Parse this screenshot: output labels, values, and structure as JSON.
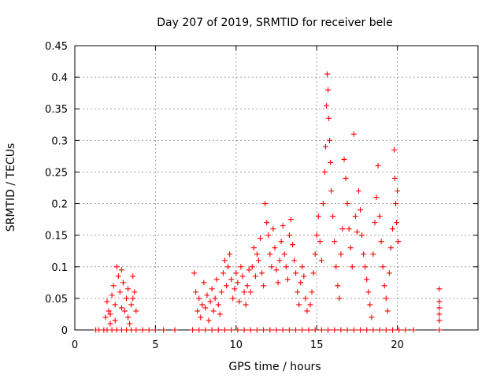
{
  "chart_data": {
    "type": "scatter",
    "title": "Day 207 of 2019, SRMTID for receiver bele",
    "xlabel": "GPS time / hours",
    "ylabel": "SRMTID / TECUs",
    "xlim": [
      0,
      25
    ],
    "ylim": [
      0,
      0.45
    ],
    "xticks": [
      0,
      5,
      10,
      15,
      20
    ],
    "xtick_labels": [
      "0",
      "5",
      "10",
      "15",
      "20"
    ],
    "yticks": [
      0,
      0.05,
      0.1,
      0.15,
      0.2,
      0.25,
      0.3,
      0.35,
      0.4,
      0.45
    ],
    "ytick_labels": [
      "0",
      "0.05",
      "0.1",
      "0.15",
      "0.2",
      "0.25",
      "0.3",
      "0.35",
      "0.4",
      "0.45"
    ],
    "grid": true,
    "marker": "+",
    "color": "#ff0000",
    "series": [
      {
        "name": "SRMTID",
        "points": [
          [
            1.3,
            0
          ],
          [
            1.5,
            0
          ],
          [
            1.8,
            0
          ],
          [
            2.0,
            0
          ],
          [
            2.3,
            0
          ],
          [
            2.6,
            0
          ],
          [
            2.9,
            0
          ],
          [
            3.2,
            0
          ],
          [
            3.5,
            0
          ],
          [
            3.8,
            0
          ],
          [
            4.2,
            0
          ],
          [
            4.6,
            0
          ],
          [
            5.0,
            0
          ],
          [
            5.5,
            0
          ],
          [
            6.2,
            0
          ],
          [
            1.9,
            0.02
          ],
          [
            2.0,
            0.045
          ],
          [
            2.1,
            0.03
          ],
          [
            2.2,
            0.01
          ],
          [
            2.3,
            0.055
          ],
          [
            2.4,
            0.07
          ],
          [
            2.5,
            0.04
          ],
          [
            2.6,
            0.1
          ],
          [
            2.7,
            0.085
          ],
          [
            2.8,
            0.06
          ],
          [
            2.9,
            0.095
          ],
          [
            3.0,
            0.075
          ],
          [
            3.1,
            0.03
          ],
          [
            3.2,
            0.05
          ],
          [
            3.3,
            0.02
          ],
          [
            3.4,
            0.01
          ],
          [
            3.5,
            0.04
          ],
          [
            3.6,
            0.085
          ],
          [
            3.7,
            0.06
          ],
          [
            3.8,
            0.03
          ],
          [
            2.2,
            0.025
          ],
          [
            2.5,
            0.015
          ],
          [
            2.9,
            0.035
          ],
          [
            3.3,
            0.065
          ],
          [
            3.6,
            0.05
          ],
          [
            7.3,
            0
          ],
          [
            7.7,
            0
          ],
          [
            8.1,
            0
          ],
          [
            8.5,
            0
          ],
          [
            8.9,
            0
          ],
          [
            9.3,
            0
          ],
          [
            9.7,
            0
          ],
          [
            10.1,
            0
          ],
          [
            10.5,
            0
          ],
          [
            10.9,
            0
          ],
          [
            11.3,
            0
          ],
          [
            11.7,
            0
          ],
          [
            12.1,
            0
          ],
          [
            12.5,
            0
          ],
          [
            12.9,
            0
          ],
          [
            13.3,
            0
          ],
          [
            13.7,
            0
          ],
          [
            14.1,
            0
          ],
          [
            14.5,
            0
          ],
          [
            14.9,
            0
          ],
          [
            15.3,
            0
          ],
          [
            15.7,
            0
          ],
          [
            16.1,
            0
          ],
          [
            16.5,
            0
          ],
          [
            16.9,
            0
          ],
          [
            17.3,
            0
          ],
          [
            17.7,
            0
          ],
          [
            18.1,
            0
          ],
          [
            18.5,
            0
          ],
          [
            18.9,
            0
          ],
          [
            19.3,
            0
          ],
          [
            19.7,
            0
          ],
          [
            20.1,
            0
          ],
          [
            20.5,
            0
          ],
          [
            21.0,
            0
          ],
          [
            7.4,
            0.09
          ],
          [
            7.5,
            0.06
          ],
          [
            7.6,
            0.03
          ],
          [
            7.7,
            0.05
          ],
          [
            7.8,
            0.02
          ],
          [
            7.9,
            0.04
          ],
          [
            8.0,
            0.075
          ],
          [
            8.1,
            0.035
          ],
          [
            8.2,
            0.055
          ],
          [
            8.3,
            0.015
          ],
          [
            8.4,
            0.045
          ],
          [
            8.5,
            0.065
          ],
          [
            8.6,
            0.03
          ],
          [
            8.7,
            0.05
          ],
          [
            8.8,
            0.08
          ],
          [
            8.9,
            0.04
          ],
          [
            9.0,
            0.025
          ],
          [
            9.1,
            0.06
          ],
          [
            9.2,
            0.09
          ],
          [
            9.3,
            0.11
          ],
          [
            9.4,
            0.07
          ],
          [
            9.5,
            0.1
          ],
          [
            9.6,
            0.12
          ],
          [
            9.7,
            0.08
          ],
          [
            9.8,
            0.05
          ],
          [
            9.9,
            0.065
          ],
          [
            10.0,
            0.09
          ],
          [
            10.1,
            0.075
          ],
          [
            10.2,
            0.045
          ],
          [
            10.3,
            0.1
          ],
          [
            10.4,
            0.085
          ],
          [
            10.5,
            0.06
          ],
          [
            10.6,
            0.04
          ],
          [
            10.7,
            0.07
          ],
          [
            10.8,
            0.095
          ],
          [
            10.9,
            0.06
          ],
          [
            11.0,
            0.1
          ],
          [
            11.1,
            0.13
          ],
          [
            11.2,
            0.085
          ],
          [
            11.3,
            0.12
          ],
          [
            11.4,
            0.11
          ],
          [
            11.5,
            0.145
          ],
          [
            11.6,
            0.09
          ],
          [
            11.7,
            0.07
          ],
          [
            11.8,
            0.2
          ],
          [
            11.9,
            0.17
          ],
          [
            12.0,
            0.15
          ],
          [
            12.1,
            0.12
          ],
          [
            12.2,
            0.1
          ],
          [
            12.3,
            0.16
          ],
          [
            12.4,
            0.13
          ],
          [
            12.5,
            0.095
          ],
          [
            12.6,
            0.075
          ],
          [
            12.7,
            0.11
          ],
          [
            12.8,
            0.14
          ],
          [
            12.9,
            0.165
          ],
          [
            13.0,
            0.12
          ],
          [
            13.1,
            0.1
          ],
          [
            13.2,
            0.08
          ],
          [
            13.3,
            0.15
          ],
          [
            13.4,
            0.175
          ],
          [
            13.5,
            0.135
          ],
          [
            13.6,
            0.11
          ],
          [
            13.7,
            0.09
          ],
          [
            13.8,
            0.06
          ],
          [
            13.9,
            0.04
          ],
          [
            14.0,
            0.075
          ],
          [
            14.1,
            0.1
          ],
          [
            14.2,
            0.085
          ],
          [
            14.3,
            0.05
          ],
          [
            14.4,
            0.03
          ],
          [
            14.6,
            0.04
          ],
          [
            14.7,
            0.06
          ],
          [
            14.8,
            0.09
          ],
          [
            14.9,
            0.12
          ],
          [
            15.0,
            0.15
          ],
          [
            15.1,
            0.18
          ],
          [
            15.2,
            0.14
          ],
          [
            15.3,
            0.11
          ],
          [
            15.4,
            0.2
          ],
          [
            15.5,
            0.25
          ],
          [
            15.55,
            0.29
          ],
          [
            15.6,
            0.355
          ],
          [
            15.65,
            0.405
          ],
          [
            15.7,
            0.38
          ],
          [
            15.75,
            0.335
          ],
          [
            15.8,
            0.3
          ],
          [
            15.85,
            0.265
          ],
          [
            15.9,
            0.22
          ],
          [
            16.0,
            0.18
          ],
          [
            16.1,
            0.14
          ],
          [
            16.2,
            0.1
          ],
          [
            16.3,
            0.07
          ],
          [
            16.4,
            0.05
          ],
          [
            16.5,
            0.12
          ],
          [
            16.6,
            0.16
          ],
          [
            16.7,
            0.27
          ],
          [
            16.8,
            0.24
          ],
          [
            16.9,
            0.2
          ],
          [
            17.0,
            0.16
          ],
          [
            17.1,
            0.13
          ],
          [
            17.2,
            0.1
          ],
          [
            17.3,
            0.31
          ],
          [
            17.4,
            0.18
          ],
          [
            17.5,
            0.155
          ],
          [
            17.6,
            0.22
          ],
          [
            17.7,
            0.19
          ],
          [
            17.8,
            0.15
          ],
          [
            17.9,
            0.12
          ],
          [
            18.0,
            0.1
          ],
          [
            18.1,
            0.08
          ],
          [
            18.2,
            0.06
          ],
          [
            18.3,
            0.04
          ],
          [
            18.4,
            0.02
          ],
          [
            18.5,
            0.12
          ],
          [
            18.6,
            0.17
          ],
          [
            18.7,
            0.21
          ],
          [
            18.8,
            0.26
          ],
          [
            18.9,
            0.18
          ],
          [
            19.0,
            0.14
          ],
          [
            19.1,
            0.1
          ],
          [
            19.2,
            0.07
          ],
          [
            19.3,
            0.05
          ],
          [
            19.4,
            0.03
          ],
          [
            19.5,
            0.09
          ],
          [
            19.6,
            0.13
          ],
          [
            19.7,
            0.16
          ],
          [
            19.8,
            0.285
          ],
          [
            19.85,
            0.24
          ],
          [
            19.9,
            0.2
          ],
          [
            19.95,
            0.17
          ],
          [
            20.0,
            0.22
          ],
          [
            20.05,
            0.14
          ],
          [
            22.6,
            0.065
          ],
          [
            22.6,
            0.045
          ],
          [
            22.6,
            0.035
          ],
          [
            22.6,
            0.025
          ],
          [
            22.6,
            0.015
          ],
          [
            22.6,
            0
          ]
        ]
      }
    ]
  }
}
